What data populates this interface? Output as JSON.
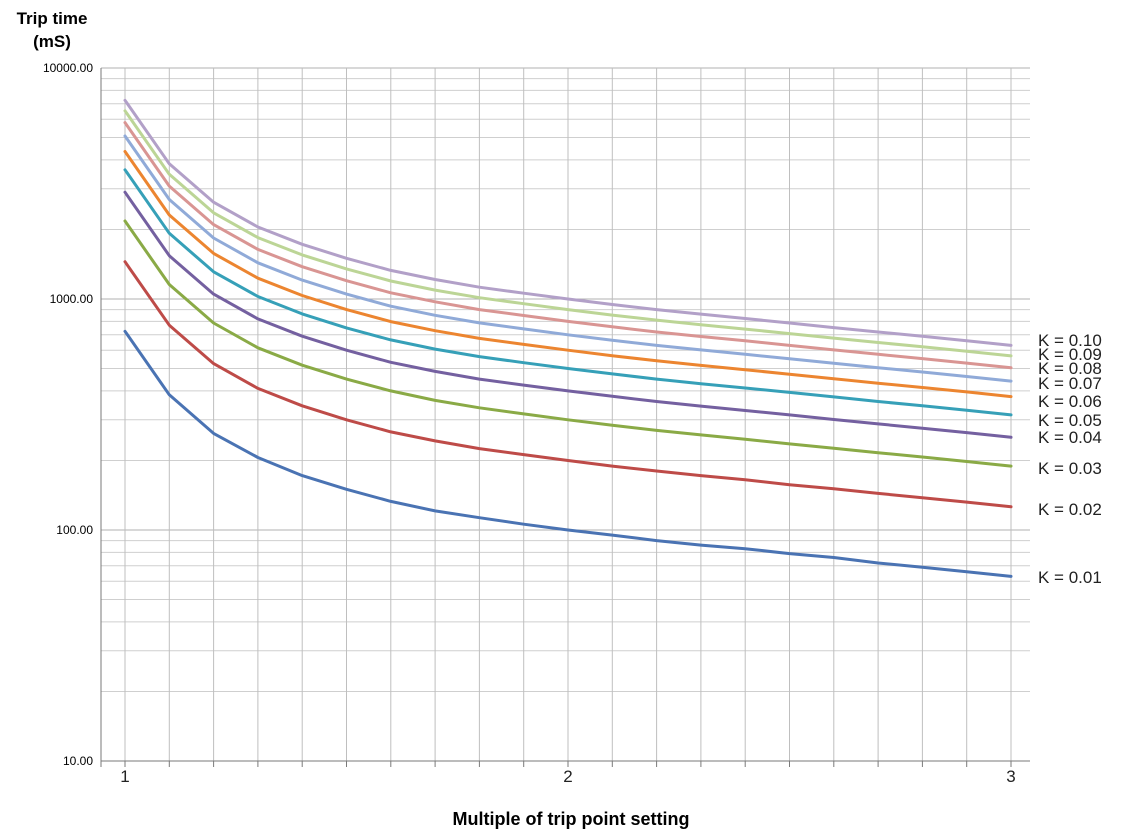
{
  "chart_data": {
    "type": "line",
    "title": "",
    "ylabel_lines": [
      "Trip time",
      "(mS)"
    ],
    "xlabel": "Multiple of trip point setting",
    "y_scale": "log",
    "ylim": [
      10,
      10000
    ],
    "xlim": [
      1,
      3
    ],
    "y_tick_labels": [
      "10000.00",
      "1000.00",
      "100.00",
      "10.00"
    ],
    "y_tick_values": [
      10000,
      1000,
      100,
      10
    ],
    "x_tick_labels": [
      "1",
      "2",
      "3"
    ],
    "x_tick_values": [
      1,
      2,
      3
    ],
    "grid": true,
    "x": [
      1.0,
      1.1,
      1.2,
      1.3,
      1.4,
      1.5,
      1.6,
      1.7,
      1.8,
      1.9,
      2.0,
      2.1,
      2.2,
      2.3,
      2.4,
      2.5,
      2.6,
      2.7,
      2.8,
      2.9,
      3.0
    ],
    "series": [
      {
        "name": "K = 0.01",
        "color": "#4a73b3",
        "values": [
          725,
          385,
          262,
          206,
          172,
          150,
          133,
          121,
          113,
          106,
          100,
          95,
          90,
          86,
          83,
          79,
          76,
          72,
          69,
          66,
          63
        ]
      },
      {
        "name": "K = 0.02",
        "color": "#be4b48",
        "values": [
          1450,
          770,
          525,
          410,
          345,
          300,
          266,
          243,
          225,
          212,
          200,
          189,
          180,
          172,
          165,
          157,
          151,
          144,
          138,
          132,
          126
        ]
      },
      {
        "name": "K = 0.03",
        "color": "#8aaa46",
        "values": [
          2175,
          1155,
          787,
          615,
          517,
          450,
          400,
          364,
          338,
          318,
          300,
          284,
          270,
          258,
          247,
          236,
          226,
          216,
          207,
          198,
          189
        ]
      },
      {
        "name": "K = 0.04",
        "color": "#7460a0",
        "values": [
          2900,
          1540,
          1050,
          820,
          690,
          600,
          532,
          486,
          450,
          424,
          400,
          379,
          360,
          344,
          329,
          315,
          301,
          288,
          276,
          264,
          252
        ]
      },
      {
        "name": "K = 0.05",
        "color": "#36a0b8",
        "values": [
          3625,
          1925,
          1312,
          1025,
          862,
          750,
          665,
          607,
          563,
          530,
          500,
          474,
          450,
          430,
          412,
          394,
          377,
          360,
          345,
          330,
          315
        ]
      },
      {
        "name": "K = 0.06",
        "color": "#ec8530",
        "values": [
          4350,
          2310,
          1575,
          1230,
          1035,
          900,
          798,
          729,
          675,
          636,
          600,
          568,
          540,
          516,
          494,
          472,
          452,
          432,
          414,
          396,
          378
        ]
      },
      {
        "name": "K = 0.07",
        "color": "#90aad8",
        "values": [
          5075,
          2695,
          1837,
          1435,
          1207,
          1050,
          931,
          850,
          788,
          742,
          700,
          663,
          630,
          602,
          576,
          551,
          527,
          504,
          483,
          462,
          441
        ]
      },
      {
        "name": "K = 0.08",
        "color": "#d99593",
        "values": [
          5800,
          3080,
          2100,
          1640,
          1380,
          1200,
          1064,
          972,
          900,
          848,
          800,
          758,
          720,
          688,
          659,
          630,
          602,
          576,
          552,
          528,
          504
        ]
      },
      {
        "name": "K = 0.09",
        "color": "#bcd596",
        "values": [
          6525,
          3465,
          2362,
          1845,
          1552,
          1350,
          1197,
          1093,
          1013,
          954,
          900,
          852,
          810,
          774,
          741,
          708,
          677,
          648,
          621,
          594,
          567
        ]
      },
      {
        "name": "K = 0.10",
        "color": "#b2a0c8",
        "values": [
          7250,
          3850,
          2625,
          2050,
          1725,
          1500,
          1330,
          1215,
          1125,
          1060,
          1000,
          947,
          900,
          860,
          823,
          787,
          752,
          720,
          690,
          660,
          630
        ]
      }
    ]
  }
}
